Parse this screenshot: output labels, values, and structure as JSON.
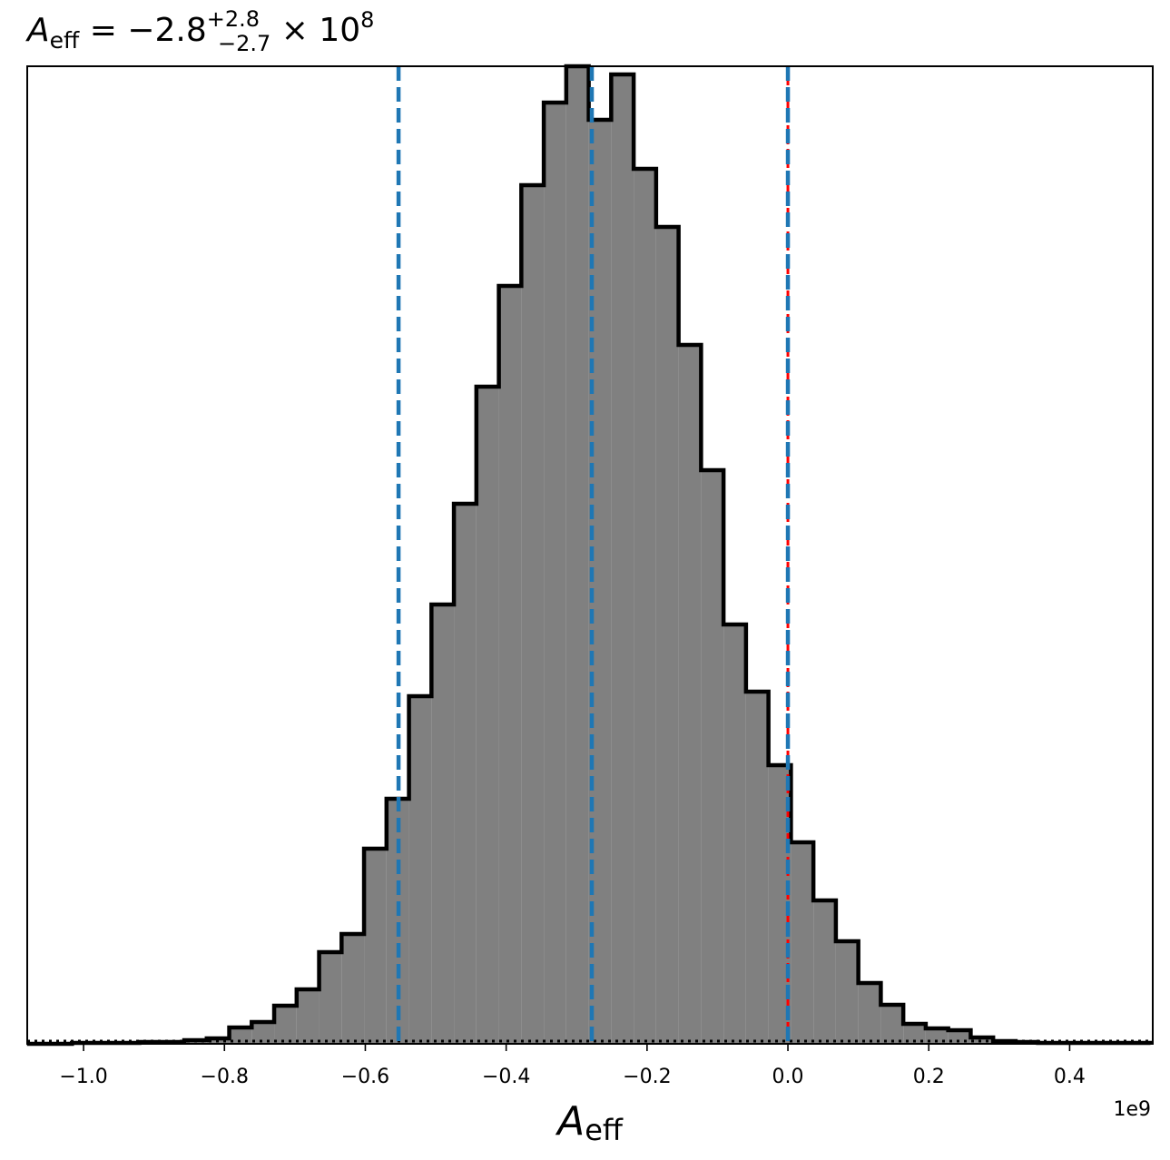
{
  "chart_data": {
    "type": "histogram",
    "title": {
      "symbol": "A",
      "symbol_sub": "eff",
      "text": " = −2.8",
      "sup": "+2.8",
      "sub": "−2.7",
      "tail": " × 10",
      "exp": "8"
    },
    "x_label": {
      "symbol": "A",
      "symbol_sub": "eff"
    },
    "x_offset_label": "1e9",
    "bins": [
      -1.0803,
      -1.0484,
      -1.0165,
      -0.9846,
      -0.9527,
      -0.9208,
      -0.8889,
      -0.857,
      -0.8251,
      -0.7932,
      -0.7613,
      -0.7294,
      -0.6975,
      -0.6656,
      -0.6337,
      -0.6018,
      -0.5699,
      -0.538,
      -0.5061,
      -0.4742,
      -0.4423,
      -0.4104,
      -0.3785,
      -0.3466,
      -0.3147,
      -0.2828,
      -0.2509,
      -0.219,
      -0.1871,
      -0.1552,
      -0.1233,
      -0.0914,
      -0.0595,
      -0.0276,
      0.0043,
      0.0362,
      0.0681,
      0.1,
      0.1319,
      0.1638,
      0.1957,
      0.2276,
      0.2595,
      0.2914,
      0.3233,
      0.3552,
      0.3871,
      0.419,
      0.4509,
      0.4828,
      0.5147
    ],
    "counts": [
      0,
      0,
      1,
      1,
      1,
      2,
      2,
      4,
      6,
      18,
      24,
      42,
      60,
      101,
      121,
      215,
      270,
      383,
      484,
      595,
      724,
      835,
      946,
      1037,
      1077,
      1018,
      1068,
      964,
      900,
      770,
      632,
      462,
      388,
      307,
      222,
      158,
      113,
      67,
      43,
      22,
      17,
      15,
      7,
      3,
      2,
      1,
      1,
      1,
      1,
      1
    ],
    "color": "#808080",
    "edge_color": "#000000",
    "xlim": [
      -1.08,
      0.518
    ],
    "ylim": [
      0,
      1077
    ],
    "xticks": [
      {
        "value": -1.0,
        "label": "−1.0"
      },
      {
        "value": -0.8,
        "label": "−0.8"
      },
      {
        "value": -0.6,
        "label": "−0.6"
      },
      {
        "value": -0.4,
        "label": "−0.4"
      },
      {
        "value": -0.2,
        "label": "−0.2"
      },
      {
        "value": 0.0,
        "label": "0.0"
      },
      0.2,
      0.4
    ],
    "vlines": [
      {
        "value": 0.0,
        "color": "#ff0000"
      },
      {
        "value": -0.5528,
        "color": "#1f77b4"
      },
      {
        "value": -0.2784,
        "color": "#1f77b4"
      },
      {
        "value": 0.0,
        "color": "#1f77b4"
      }
    ]
  }
}
